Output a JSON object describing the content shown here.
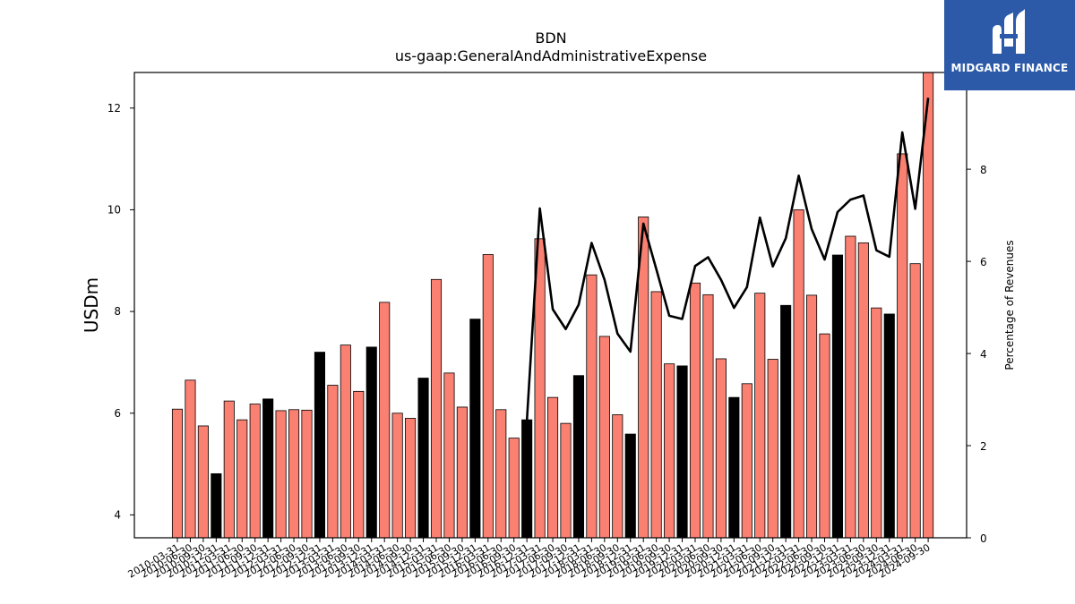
{
  "brand": {
    "name": "MIDGARD FINANCE"
  },
  "colors": {
    "bar_default": "#fa8072",
    "bar_highlight": "#000000",
    "line": "#000000",
    "logo_bg": "#2c5aa8"
  },
  "chart_data": {
    "type": "bar",
    "title": "BDN",
    "subtitle": "us-gaap:GeneralAndAdministrativeExpense",
    "ylabel": "USDm",
    "ylabel_right": "Percentage of Revenues",
    "ylim": [
      3.55,
      12.7
    ],
    "ylim_right": [
      0,
      10.1
    ],
    "yticks": [
      4,
      6,
      8,
      10,
      12
    ],
    "yticks_right": [
      0,
      2,
      4,
      6,
      8
    ],
    "categories": [
      "2010-03-31",
      "2010-06-30",
      "2010-09-30",
      "2010-12-31",
      "2011-03-31",
      "2011-06-30",
      "2011-09-30",
      "2011-12-31",
      "2012-03-31",
      "2012-06-30",
      "2012-09-30",
      "2012-12-31",
      "2013-03-31",
      "2013-06-30",
      "2013-09-30",
      "2013-12-31",
      "2014-03-31",
      "2014-06-30",
      "2014-09-30",
      "2014-12-31",
      "2015-03-31",
      "2015-06-30",
      "2015-09-30",
      "2015-12-31",
      "2016-03-31",
      "2016-06-30",
      "2016-09-30",
      "2016-12-31",
      "2017-03-31",
      "2017-06-30",
      "2017-09-30",
      "2017-12-31",
      "2018-03-31",
      "2018-06-30",
      "2018-09-30",
      "2018-12-31",
      "2019-03-31",
      "2019-06-30",
      "2019-09-30",
      "2019-12-31",
      "2020-03-31",
      "2020-06-30",
      "2020-09-30",
      "2020-12-31",
      "2021-03-31",
      "2021-06-30",
      "2021-09-30",
      "2021-12-31",
      "2022-03-31",
      "2022-06-30",
      "2022-09-30",
      "2022-12-31",
      "2023-03-31",
      "2023-06-30",
      "2023-09-30",
      "2023-12-31",
      "2024-03-31",
      "2024-06-30",
      "2024-09-30"
    ],
    "series": [
      {
        "values": [
          6.08,
          6.65,
          5.75,
          4.81,
          6.24,
          5.87,
          6.18,
          6.28,
          6.05,
          6.07,
          6.06,
          7.2,
          6.55,
          7.34,
          6.43,
          7.3,
          8.18,
          6.0,
          5.9,
          6.69,
          8.63,
          6.79,
          6.12,
          7.85,
          9.12,
          6.07,
          5.51,
          5.87,
          9.43,
          6.31,
          5.8,
          6.74,
          8.72,
          7.51,
          5.97,
          5.59,
          9.86,
          8.39,
          6.97,
          6.93,
          8.56,
          8.33,
          7.07,
          6.31,
          6.58,
          8.36,
          7.06,
          8.12,
          10.0,
          8.32,
          7.56,
          9.11,
          9.48,
          9.35,
          8.07,
          7.95,
          11.1,
          8.94,
          12.7
        ],
        "highlight": [
          false,
          false,
          false,
          true,
          false,
          false,
          false,
          true,
          false,
          false,
          false,
          true,
          false,
          false,
          false,
          true,
          false,
          false,
          false,
          true,
          false,
          false,
          false,
          true,
          false,
          false,
          false,
          true,
          false,
          false,
          false,
          true,
          false,
          false,
          false,
          true,
          false,
          false,
          false,
          true,
          false,
          false,
          false,
          true,
          false,
          false,
          false,
          true,
          false,
          false,
          false,
          true,
          false,
          false,
          false,
          true,
          false,
          false,
          false
        ]
      },
      {
        "axis": "right",
        "type": "line",
        "values": [
          null,
          null,
          null,
          null,
          null,
          null,
          null,
          null,
          null,
          null,
          null,
          null,
          null,
          null,
          null,
          null,
          null,
          null,
          null,
          null,
          null,
          null,
          null,
          null,
          null,
          null,
          null,
          2.54,
          7.15,
          4.96,
          4.53,
          5.06,
          6.4,
          5.6,
          4.43,
          4.04,
          6.82,
          5.83,
          4.82,
          4.75,
          5.9,
          6.09,
          5.6,
          4.99,
          5.44,
          6.95,
          5.89,
          6.5,
          7.86,
          6.7,
          6.04,
          7.07,
          7.34,
          7.43,
          6.24,
          6.1,
          8.8,
          7.14,
          9.55
        ]
      }
    ],
    "grid": false
  }
}
